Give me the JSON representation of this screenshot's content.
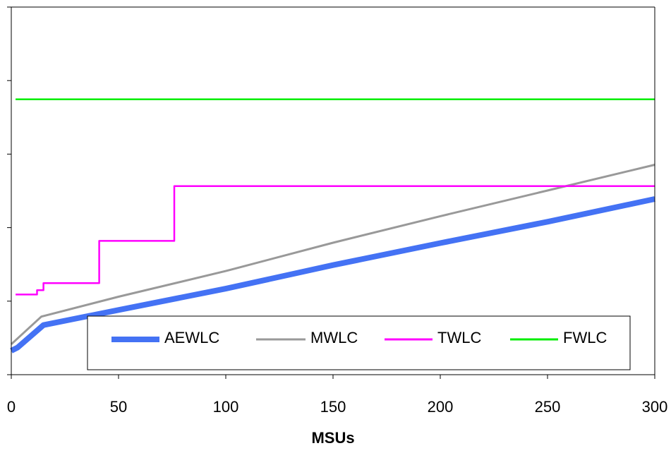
{
  "chart_data": {
    "type": "line",
    "title": "",
    "xlabel": "MSUs",
    "ylabel": "",
    "xlim": [
      0,
      300
    ],
    "x_ticks": [
      0,
      50,
      100,
      150,
      200,
      250,
      300
    ],
    "ylim": [
      0,
      100
    ],
    "y_tick_count": 5,
    "grid": false,
    "legend": "bottom-inside",
    "series": [
      {
        "name": "AEWLC",
        "color": "#4472f4",
        "x": [
          0,
          3,
          15,
          50,
          100,
          150,
          200,
          250,
          300
        ],
        "y": [
          6.5,
          7.4,
          13.5,
          17.6,
          23.4,
          29.8,
          35.8,
          41.6,
          47.8
        ]
      },
      {
        "name": "MWLC",
        "color": "#999999",
        "x": [
          0,
          14,
          50,
          100,
          150,
          200,
          250,
          300
        ],
        "y": [
          8.3,
          15.8,
          21.2,
          28.2,
          35.9,
          43.1,
          50.1,
          57.1
        ]
      },
      {
        "name": "TWLC",
        "color": "#ff00ff",
        "x": [
          2,
          12,
          12,
          15,
          15,
          41,
          41,
          76,
          76,
          300
        ],
        "y": [
          21.8,
          21.8,
          23.0,
          23.0,
          24.9,
          24.9,
          36.4,
          36.4,
          51.3,
          51.3
        ]
      },
      {
        "name": "FWLC",
        "color": "#00ee00",
        "x": [
          2,
          300
        ],
        "y": [
          74.9,
          74.9
        ]
      }
    ]
  }
}
